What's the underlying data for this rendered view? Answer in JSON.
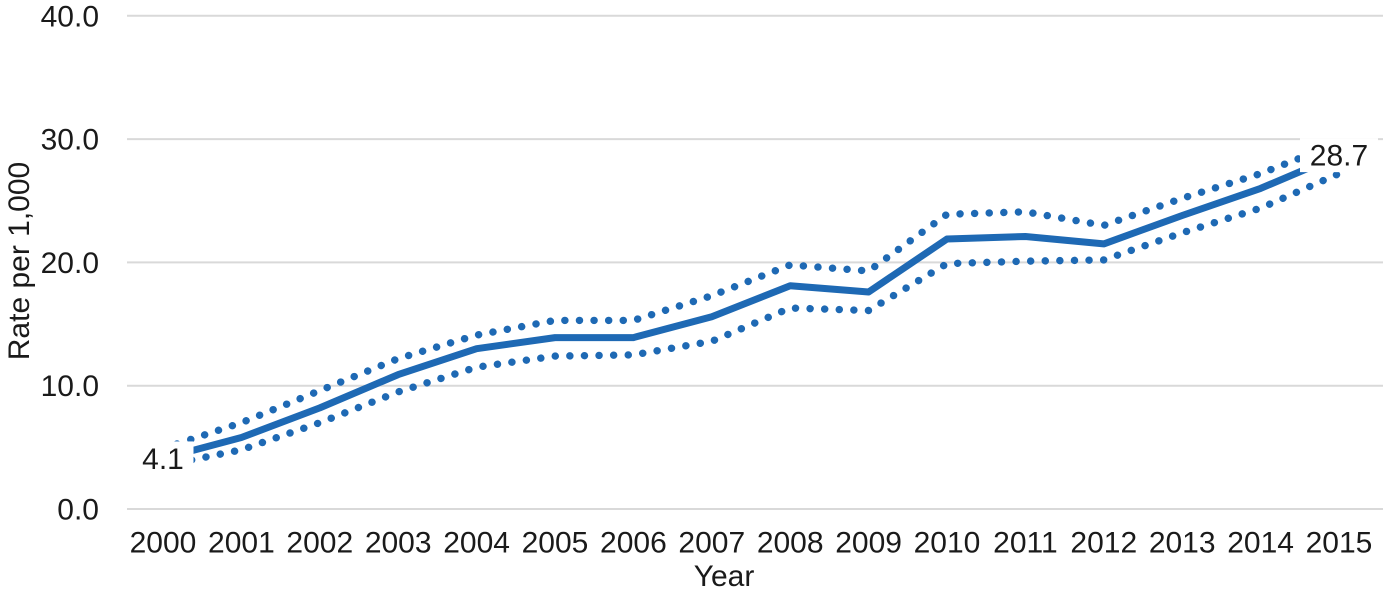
{
  "colors": {
    "line_blue": "#1E69B4",
    "gridline_gray": "#D9D9D9",
    "text_color": "#1A1A1A",
    "background": "#FFFFFF",
    "label_mask": "#FFFFFF"
  },
  "chart_data": {
    "type": "line",
    "title": "",
    "xlabel": "Year",
    "ylabel": "Rate per 1,000",
    "categories": [
      "2000",
      "2001",
      "2002",
      "2003",
      "2004",
      "2005",
      "2006",
      "2007",
      "2008",
      "2009",
      "2010",
      "2011",
      "2012",
      "2013",
      "2014",
      "2015"
    ],
    "series": [
      {
        "name": "solid-rate-line",
        "line_style": "solid",
        "values": [
          4.1,
          5.8,
          8.2,
          10.9,
          13.0,
          13.9,
          13.9,
          15.6,
          18.1,
          17.6,
          21.9,
          22.1,
          21.5,
          23.8,
          26.0,
          28.7
        ]
      },
      {
        "name": "upper-dotted-line",
        "line_style": "dotted",
        "values": [
          4.9,
          7.0,
          9.6,
          12.2,
          14.1,
          15.3,
          15.3,
          17.3,
          19.8,
          19.3,
          23.9,
          24.1,
          23.0,
          25.2,
          27.2,
          29.7
        ]
      },
      {
        "name": "lower-dotted-line",
        "line_style": "dotted",
        "values": [
          3.5,
          4.8,
          7.0,
          9.5,
          11.5,
          12.4,
          12.5,
          13.6,
          16.3,
          16.1,
          19.9,
          20.1,
          20.2,
          22.4,
          24.4,
          27.2
        ]
      }
    ],
    "yticks": [
      {
        "value": 0,
        "label": "0.0"
      },
      {
        "value": 10,
        "label": "10.0"
      },
      {
        "value": 20,
        "label": "20.0"
      },
      {
        "value": 30,
        "label": "30.0"
      },
      {
        "value": 40,
        "label": "40.0"
      }
    ],
    "ylim": [
      0,
      40
    ],
    "grid": true,
    "legend": false,
    "annotations": [
      {
        "text": "4.1",
        "point_index": 0
      },
      {
        "text": "28.7",
        "point_index": 15
      }
    ]
  }
}
